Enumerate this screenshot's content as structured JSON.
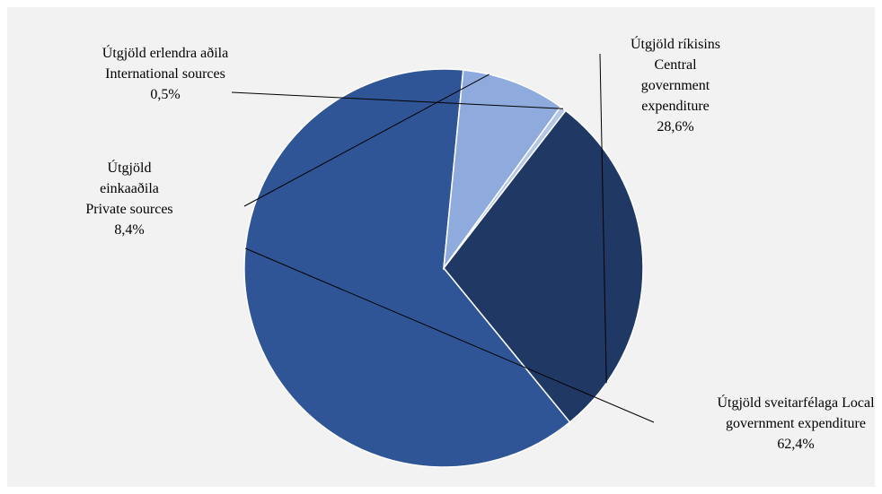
{
  "chart_data": {
    "type": "pie",
    "title": "",
    "slices": [
      {
        "label_lines": [
          "Útgjöld ríkisins",
          "Central",
          "government",
          "expenditure"
        ],
        "value_label": "28,6%",
        "value": 28.6,
        "color": "#203864"
      },
      {
        "label_lines": [
          "Útgjöld sveitarfélaga  Local",
          "government expenditure"
        ],
        "value_label": "62,4%",
        "value": 62.4,
        "color": "#2f5597"
      },
      {
        "label_lines": [
          "Útgjöld",
          "einkaaðila",
          "Private sources"
        ],
        "value_label": "8,4%",
        "value": 8.4,
        "color": "#8faadc"
      },
      {
        "label_lines": [
          "Útgjöld erlendra aðila",
          "International sources"
        ],
        "value_label": "0,5%",
        "value": 0.5,
        "color": "#b4c7e7"
      }
    ]
  }
}
